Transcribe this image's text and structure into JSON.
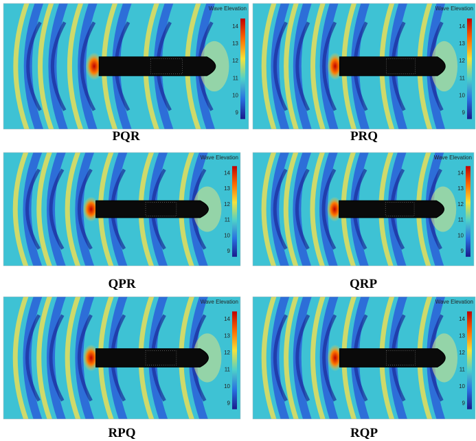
{
  "panels": [
    {
      "label": "PQR",
      "colorbar_title": "Wave Elevation",
      "colorbar_ticks": [
        14,
        13,
        12,
        11,
        10,
        9
      ]
    },
    {
      "label": "PRQ",
      "colorbar_title": "Wave Elevation",
      "colorbar_ticks": [
        14,
        13,
        12,
        11,
        10,
        9
      ]
    },
    {
      "label": "QPR",
      "colorbar_title": "Wave Elevation",
      "colorbar_ticks": [
        14,
        13,
        12,
        11,
        10,
        9
      ]
    },
    {
      "label": "QRP",
      "colorbar_title": "Wave Elevation",
      "colorbar_ticks": [
        14,
        13,
        12,
        11,
        10,
        9
      ]
    },
    {
      "label": "RPQ",
      "colorbar_title": "Wave Elevation",
      "colorbar_ticks": [
        14,
        13,
        12,
        11,
        10,
        9
      ]
    },
    {
      "label": "RQP",
      "colorbar_title": "Wave Elevation",
      "colorbar_ticks": [
        14,
        13,
        12,
        11,
        10,
        9
      ]
    }
  ]
}
